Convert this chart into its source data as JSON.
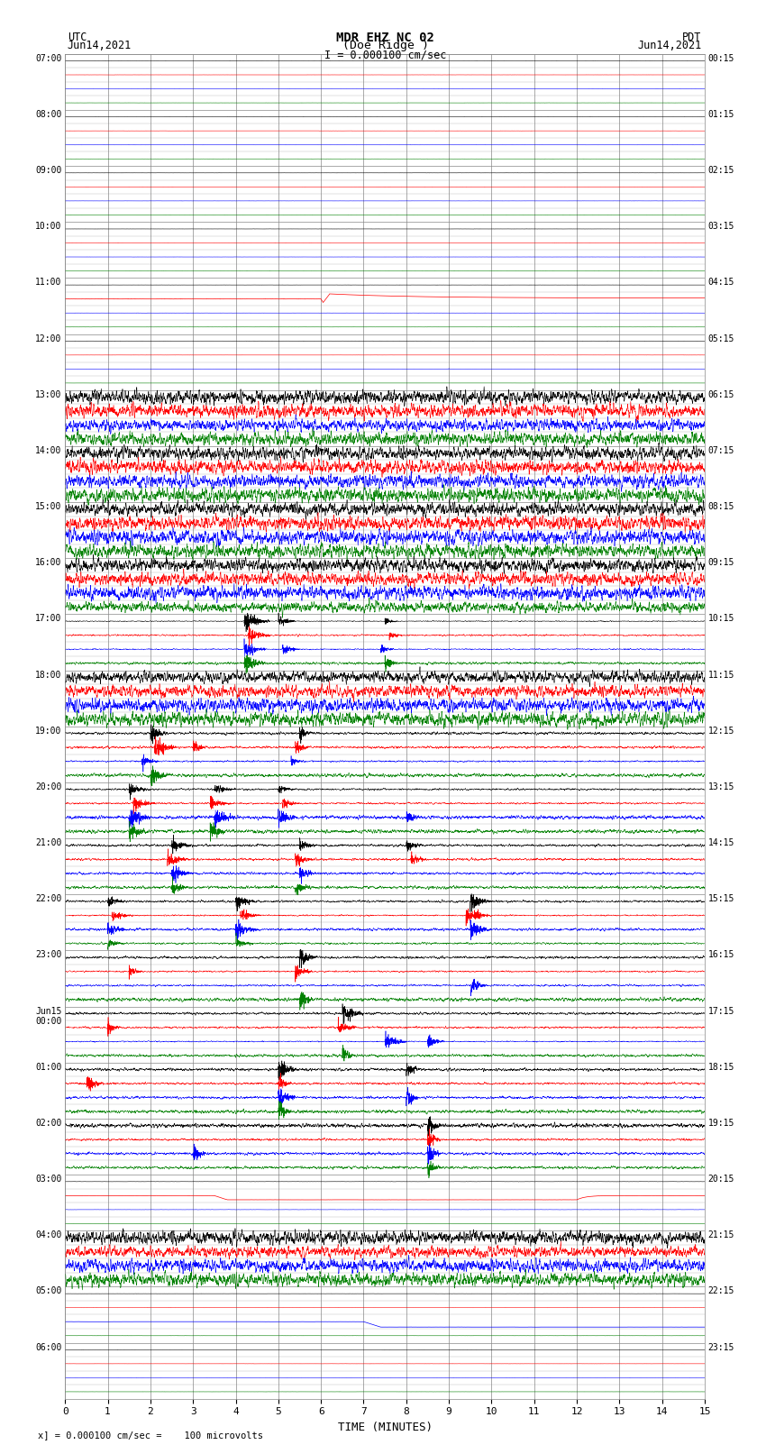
{
  "title_line1": "MDR EHZ NC 02",
  "title_line2": "(Doe Ridge )",
  "title_line3": "I = 0.000100 cm/sec",
  "left_header1": "UTC",
  "left_header2": "Jun14,2021",
  "right_header1": "PDT",
  "right_header2": "Jun14,2021",
  "xlabel": "TIME (MINUTES)",
  "footer": "x] = 0.000100 cm/sec =    100 microvolts",
  "xlim": [
    0,
    15
  ],
  "xticks": [
    0,
    1,
    2,
    3,
    4,
    5,
    6,
    7,
    8,
    9,
    10,
    11,
    12,
    13,
    14,
    15
  ],
  "utc_labels": [
    "07:00",
    "08:00",
    "09:00",
    "10:00",
    "11:00",
    "12:00",
    "13:00",
    "14:00",
    "15:00",
    "16:00",
    "17:00",
    "18:00",
    "19:00",
    "20:00",
    "21:00",
    "22:00",
    "23:00",
    "Jun15\n00:00",
    "01:00",
    "02:00",
    "03:00",
    "04:00",
    "05:00",
    "06:00"
  ],
  "pdt_labels": [
    "00:15",
    "01:15",
    "02:15",
    "03:15",
    "04:15",
    "05:15",
    "06:15",
    "07:15",
    "08:15",
    "09:15",
    "10:15",
    "11:15",
    "12:15",
    "13:15",
    "14:15",
    "15:15",
    "16:15",
    "17:15",
    "18:15",
    "19:15",
    "20:15",
    "21:15",
    "22:15",
    "23:15"
  ],
  "n_rows": 24,
  "traces_per_row": 4,
  "colors": [
    "black",
    "red",
    "blue",
    "green"
  ],
  "background_color": "white"
}
